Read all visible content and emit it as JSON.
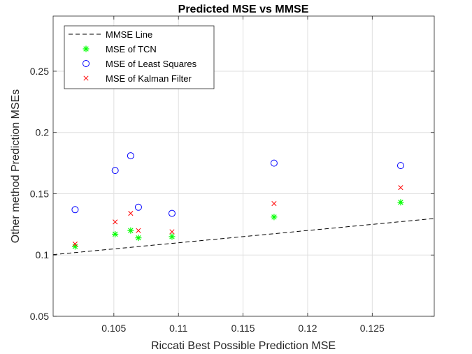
{
  "chart_data": {
    "type": "scatter",
    "title": "Predicted MSE vs MMSE",
    "xlabel": "Riccati Best Possible Prediction MSE",
    "ylabel": "Other method Prediction MSEs",
    "xlim": [
      0.1003,
      0.1298
    ],
    "ylim": [
      0.05,
      0.295
    ],
    "xticks": [
      0.105,
      0.11,
      0.115,
      0.12,
      0.125
    ],
    "xtick_labels": [
      "0.105",
      "0.11",
      "0.115",
      "0.12",
      "0.125"
    ],
    "yticks": [
      0.05,
      0.1,
      0.15,
      0.2,
      0.25
    ],
    "ytick_labels": [
      "0.05",
      "0.1",
      "0.15",
      "0.2",
      "0.25"
    ],
    "grid": true,
    "legend_position": "top-left",
    "series": [
      {
        "name": "MMSE Line",
        "kind": "line",
        "style": "dashed",
        "color": "#000000",
        "x": [
          0.1003,
          0.1298
        ],
        "y": [
          0.1003,
          0.1298
        ]
      },
      {
        "name": "MSE of TCN",
        "kind": "marker",
        "marker": "asterisk",
        "color": "#00ff00",
        "x": [
          0.102,
          0.1051,
          0.1063,
          0.1069,
          0.1095,
          0.1174,
          0.1272
        ],
        "y": [
          0.107,
          0.117,
          0.12,
          0.114,
          0.115,
          0.131,
          0.143
        ]
      },
      {
        "name": "MSE of Least Squares",
        "kind": "marker",
        "marker": "circle",
        "color": "#0000ff",
        "x": [
          0.102,
          0.1051,
          0.1063,
          0.1069,
          0.1095,
          0.1174,
          0.1272
        ],
        "y": [
          0.137,
          0.169,
          0.181,
          0.139,
          0.134,
          0.175,
          0.173
        ]
      },
      {
        "name": "MSE of Kalman Filter",
        "kind": "marker",
        "marker": "x",
        "color": "#ff0000",
        "x": [
          0.102,
          0.1051,
          0.1063,
          0.1069,
          0.1095,
          0.1174,
          0.1272
        ],
        "y": [
          0.109,
          0.127,
          0.134,
          0.12,
          0.119,
          0.142,
          0.155
        ]
      }
    ]
  }
}
